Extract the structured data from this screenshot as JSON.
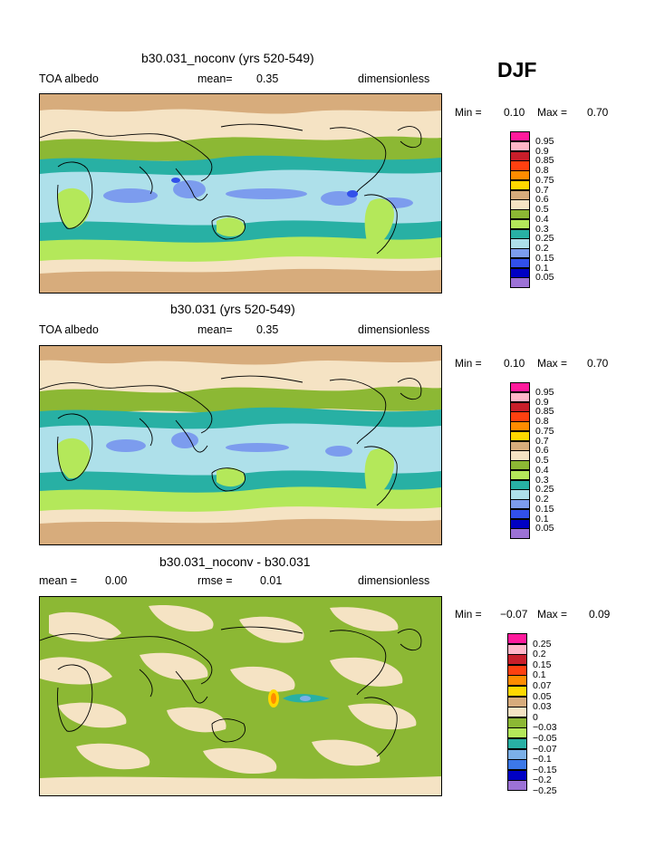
{
  "season": "DJF",
  "panels": [
    {
      "title": "b30.031_noconv (yrs 520-549)",
      "left_label": "TOA albedo",
      "mean_label": "mean=",
      "mean_value": "0.35",
      "units": "dimensionless",
      "min_label": "Min =",
      "min_value": "0.10",
      "max_label": "Max =",
      "max_value": "0.70",
      "levels": [
        "0.95",
        "0.9",
        "0.85",
        "0.8",
        "0.75",
        "0.7",
        "0.6",
        "0.5",
        "0.4",
        "0.3",
        "0.25",
        "0.2",
        "0.15",
        "0.1",
        "0.05"
      ],
      "colors": [
        "#ff1a9c",
        "#ffb6c8",
        "#c81e2a",
        "#ff4010",
        "#ff8c00",
        "#ffd800",
        "#d7ac7c",
        "#f5e3c4",
        "#8cb834",
        "#b4e85a",
        "#28b0a4",
        "#aee0ea",
        "#7c9cee",
        "#3250ea",
        "#0000c4",
        "#9c72d6"
      ]
    },
    {
      "title": "b30.031 (yrs 520-549)",
      "left_label": "TOA albedo",
      "mean_label": "mean=",
      "mean_value": "0.35",
      "units": "dimensionless",
      "min_label": "Min =",
      "min_value": "0.10",
      "max_label": "Max =",
      "max_value": "0.70",
      "levels": [
        "0.95",
        "0.9",
        "0.85",
        "0.8",
        "0.75",
        "0.7",
        "0.6",
        "0.5",
        "0.4",
        "0.3",
        "0.25",
        "0.2",
        "0.15",
        "0.1",
        "0.05"
      ],
      "colors": [
        "#ff1a9c",
        "#ffb6c8",
        "#c81e2a",
        "#ff4010",
        "#ff8c00",
        "#ffd800",
        "#d7ac7c",
        "#f5e3c4",
        "#8cb834",
        "#b4e85a",
        "#28b0a4",
        "#aee0ea",
        "#7c9cee",
        "#3250ea",
        "#0000c4",
        "#9c72d6"
      ]
    },
    {
      "title": "b30.031_noconv - b30.031",
      "left_label": "mean =",
      "left_value": "0.00",
      "mean_label": "rmse =",
      "mean_value": "0.01",
      "units": "dimensionless",
      "min_label": "Min =",
      "min_value": "−0.07",
      "max_label": "Max =",
      "max_value": "0.09",
      "levels": [
        "0.25",
        "0.2",
        "0.15",
        "0.1",
        "0.07",
        "0.05",
        "0.03",
        "0",
        "−0.03",
        "−0.05",
        "−0.07",
        "−0.1",
        "−0.15",
        "−0.2",
        "−0.25"
      ],
      "colors": [
        "#ff1a9c",
        "#ffb6c8",
        "#c81e2a",
        "#ff4010",
        "#ff8c00",
        "#ffd800",
        "#d7ac7c",
        "#f5e3c4",
        "#8cb834",
        "#b4e85a",
        "#28b0a4",
        "#7cb0e8",
        "#3c78e8",
        "#0000c4",
        "#9c72d6"
      ]
    }
  ]
}
